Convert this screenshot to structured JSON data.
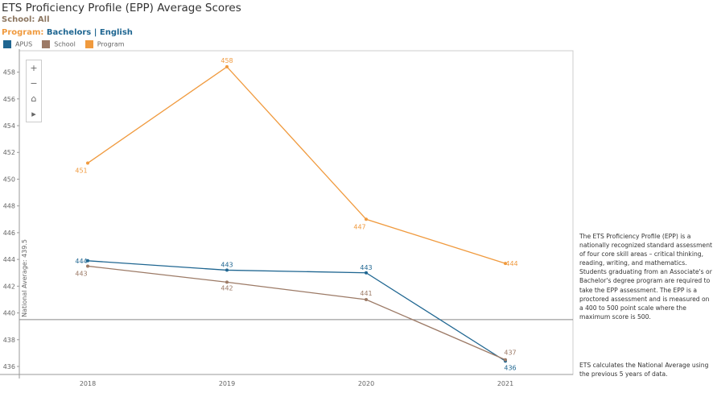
{
  "header": {
    "title": "ETS Proficiency Profile (EPP) Average Scores",
    "school_label": "School: All",
    "program_prefix": "Program:",
    "program_value": "Bachelors | English"
  },
  "legend": [
    {
      "name": "APUS",
      "color": "#1f6691"
    },
    {
      "name": "School",
      "color": "#9c7a66"
    },
    {
      "name": "Program",
      "color": "#f09a3e"
    }
  ],
  "toolbar": {
    "zoom_in": "+",
    "zoom_out": "−",
    "home": "⌂",
    "play": "▸"
  },
  "notes": {
    "p1": "The ETS Proficiency Profile (EPP) is a nationally recognized standard assessment of four core skill areas – critical thinking, reading, writing, and mathematics.  Students graduating from an Associate's or Bachelor's degree program are required to take the EPP assessment.  The EPP is a proctored assessment and is measured on a 400 to 500 point scale where the maximum score is 500.",
    "p2": "ETS calculates the National Average using the previous 5 years of data."
  },
  "chart_data": {
    "type": "line",
    "categories": [
      "2018",
      "2019",
      "2020",
      "2021"
    ],
    "yticks": [
      436,
      438,
      440,
      442,
      444,
      446,
      448,
      450,
      452,
      454,
      456,
      458
    ],
    "ylim": [
      435.4,
      459.6
    ],
    "grid": false,
    "legend_placement": "top-left",
    "reference_line": {
      "value": 439.5,
      "label": "National Average: 439.5"
    },
    "series": [
      {
        "name": "Program",
        "color": "#f09a3e",
        "values": [
          451.2,
          458.4,
          447.0,
          443.7
        ],
        "labels": [
          "451",
          "458",
          "447",
          "444"
        ]
      },
      {
        "name": "APUS",
        "color": "#1f6691",
        "values": [
          443.9,
          443.2,
          443.0,
          436.4
        ],
        "labels": [
          "444",
          "443",
          "443",
          "436"
        ]
      },
      {
        "name": "School",
        "color": "#9c7a66",
        "values": [
          443.5,
          442.3,
          441.0,
          436.5
        ],
        "labels": [
          "443",
          "442",
          "441",
          "437"
        ]
      }
    ]
  }
}
